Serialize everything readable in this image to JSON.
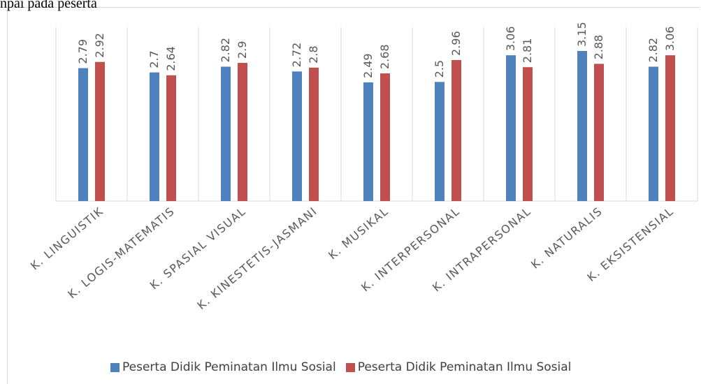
{
  "header_fragment": "npai pada peserta",
  "chart_data": {
    "type": "bar",
    "categories": [
      "K. LINGUISTIK",
      "K. LOGIS-MATEMATIS",
      "K. SPASIAL VISUAL",
      "K. KINESTETIS-JASMANI",
      "K. MUSIKAL",
      "K. INTERPERSONAL",
      "K. INTRAPERSONAL",
      "K. NATURALIS",
      "K. EKSISTENSIAL"
    ],
    "series": [
      {
        "name": "Peserta Didik Peminatan Ilmu Sosial",
        "color": "#4f81bd",
        "values": [
          2.79,
          2.7,
          2.82,
          2.72,
          2.49,
          2.5,
          3.06,
          3.15,
          2.82
        ],
        "labels": [
          "2.79",
          "2.7",
          "2.82",
          "2.72",
          "2.49",
          "2.5",
          "3.06",
          "3.15",
          "2.82"
        ]
      },
      {
        "name": "Peserta Didik Peminatan Ilmu Sosial",
        "color": "#c0504d",
        "values": [
          2.92,
          2.64,
          2.9,
          2.8,
          2.68,
          2.96,
          2.81,
          2.88,
          3.06
        ],
        "labels": [
          "2.92",
          "2.64",
          "2.9",
          "2.8",
          "2.68",
          "2.96",
          "2.81",
          "2.88",
          "3.06"
        ]
      }
    ],
    "ylim": [
      0,
      3.15
    ],
    "grid": "vertical category separators",
    "legend_position": "bottom"
  }
}
